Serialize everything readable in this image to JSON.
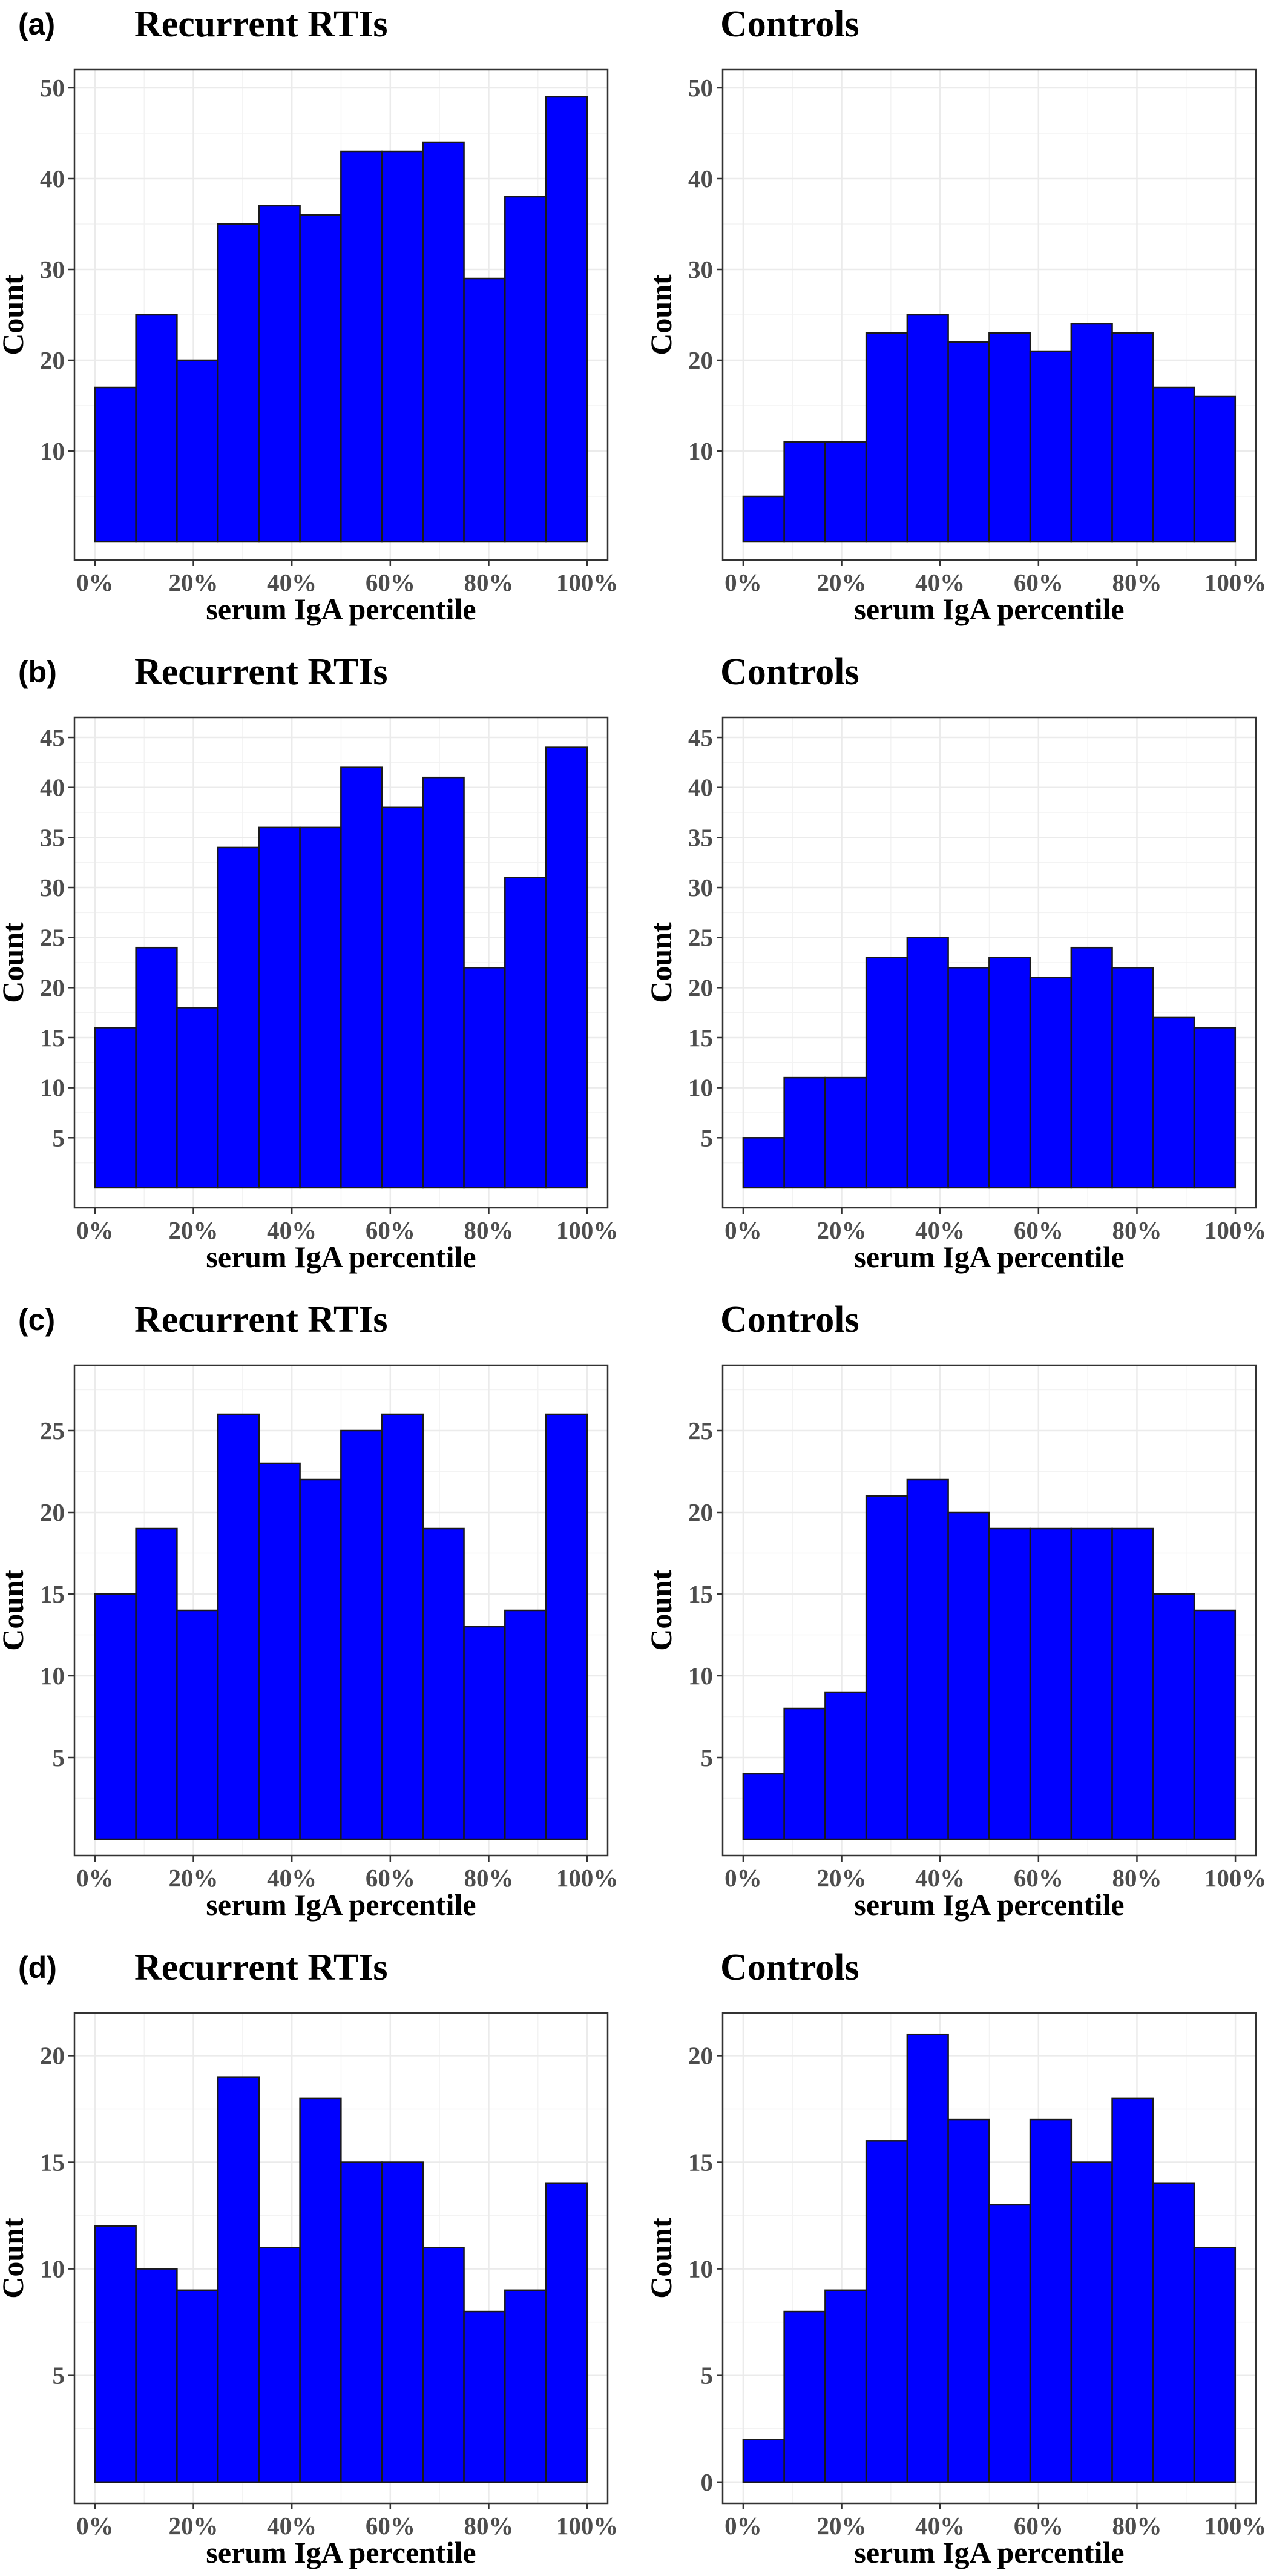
{
  "colors": {
    "bar_fill": "#0000ff",
    "bar_stroke": "#1a1a1a",
    "grid": "#ebebeb",
    "frame": "#333333"
  },
  "chart_data": [
    {
      "panel": "(a)",
      "title": "Recurrent RTIs",
      "type": "bar",
      "xlabel": "serum IgA percentile",
      "ylabel": "Count",
      "xlim": [
        0,
        100
      ],
      "xticks": [
        "0%",
        "20%",
        "40%",
        "60%",
        "80%",
        "100%"
      ],
      "ylim": [
        -2,
        52
      ],
      "yticks": [
        10,
        20,
        30,
        40,
        50
      ],
      "bin_width_percent": 8.33,
      "values": [
        17,
        25,
        20,
        35,
        37,
        36,
        43,
        43,
        44,
        29,
        38,
        49
      ]
    },
    {
      "panel": "",
      "title": "Controls",
      "type": "bar",
      "xlabel": "serum IgA percentile",
      "ylabel": "Count",
      "xlim": [
        0,
        100
      ],
      "xticks": [
        "0%",
        "20%",
        "40%",
        "60%",
        "80%",
        "100%"
      ],
      "ylim": [
        -2,
        52
      ],
      "yticks": [
        10,
        20,
        30,
        40,
        50
      ],
      "bin_width_percent": 8.33,
      "values": [
        5,
        11,
        11,
        23,
        25,
        22,
        23,
        21,
        24,
        23,
        17,
        16
      ]
    },
    {
      "panel": "(b)",
      "title": "Recurrent RTIs",
      "type": "bar",
      "xlabel": "serum IgA percentile",
      "ylabel": "Count",
      "xlim": [
        0,
        100
      ],
      "xticks": [
        "0%",
        "20%",
        "40%",
        "60%",
        "80%",
        "100%"
      ],
      "ylim": [
        -2,
        47
      ],
      "yticks": [
        5,
        10,
        15,
        20,
        25,
        30,
        35,
        40,
        45
      ],
      "bin_width_percent": 8.33,
      "values": [
        16,
        24,
        18,
        34,
        36,
        36,
        42,
        38,
        41,
        22,
        31,
        44
      ]
    },
    {
      "panel": "",
      "title": "Controls",
      "type": "bar",
      "xlabel": "serum IgA percentile",
      "ylabel": "Count",
      "xlim": [
        0,
        100
      ],
      "xticks": [
        "0%",
        "20%",
        "40%",
        "60%",
        "80%",
        "100%"
      ],
      "ylim": [
        -2,
        47
      ],
      "yticks": [
        5,
        10,
        15,
        20,
        25,
        30,
        35,
        40,
        45
      ],
      "bin_width_percent": 8.33,
      "values": [
        5,
        11,
        11,
        23,
        25,
        22,
        23,
        21,
        24,
        22,
        17,
        16
      ]
    },
    {
      "panel": "(c)",
      "title": "Recurrent RTIs",
      "type": "bar",
      "xlabel": "serum IgA percentile",
      "ylabel": "Count",
      "xlim": [
        0,
        100
      ],
      "xticks": [
        "0%",
        "20%",
        "40%",
        "60%",
        "80%",
        "100%"
      ],
      "ylim": [
        -1,
        29
      ],
      "yticks": [
        5,
        10,
        15,
        20,
        25
      ],
      "bin_width_percent": 8.33,
      "values": [
        15,
        19,
        14,
        26,
        23,
        22,
        25,
        26,
        19,
        13,
        14,
        26
      ]
    },
    {
      "panel": "",
      "title": "Controls",
      "type": "bar",
      "xlabel": "serum IgA percentile",
      "ylabel": "Count",
      "xlim": [
        0,
        100
      ],
      "xticks": [
        "0%",
        "20%",
        "40%",
        "60%",
        "80%",
        "100%"
      ],
      "ylim": [
        -1,
        29
      ],
      "yticks": [
        5,
        10,
        15,
        20,
        25
      ],
      "bin_width_percent": 8.33,
      "values": [
        4,
        8,
        9,
        21,
        22,
        20,
        19,
        19,
        19,
        19,
        15,
        14
      ]
    },
    {
      "panel": "(d)",
      "title": "Recurrent RTIs",
      "type": "bar",
      "xlabel": "serum IgA percentile",
      "ylabel": "Count",
      "xlim": [
        0,
        100
      ],
      "xticks": [
        "0%",
        "20%",
        "40%",
        "60%",
        "80%",
        "100%"
      ],
      "ylim": [
        -1,
        22
      ],
      "yticks": [
        5,
        10,
        15,
        20
      ],
      "bin_width_percent": 8.33,
      "values": [
        12,
        10,
        9,
        19,
        11,
        18,
        15,
        15,
        11,
        8,
        9,
        14
      ]
    },
    {
      "panel": "",
      "title": "Controls",
      "type": "bar",
      "xlabel": "serum IgA percentile",
      "ylabel": "Count",
      "xlim": [
        0,
        100
      ],
      "xticks": [
        "0%",
        "20%",
        "40%",
        "60%",
        "80%",
        "100%"
      ],
      "ylim": [
        -1,
        22
      ],
      "yticks": [
        0,
        5,
        10,
        15,
        20
      ],
      "bin_width_percent": 8.33,
      "values": [
        2,
        8,
        9,
        16,
        21,
        17,
        13,
        17,
        15,
        18,
        14,
        11
      ]
    }
  ]
}
